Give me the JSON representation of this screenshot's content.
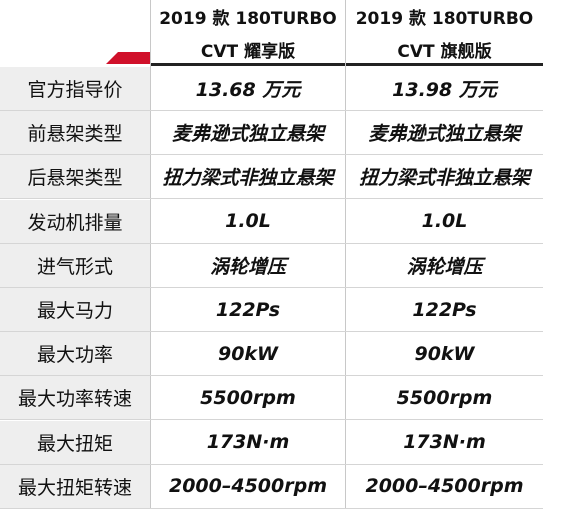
{
  "table": {
    "columns": [
      [
        "2019 款 180TURBO",
        "CVT 耀享版"
      ],
      [
        "2019 款 180TURBO",
        "CVT 旗舰版"
      ]
    ],
    "rows": [
      [
        "官方指导价",
        "13.68 万元",
        "13.98 万元"
      ],
      [
        "前悬架类型",
        "麦弗逊式独立悬架",
        "麦弗逊式独立悬架"
      ],
      [
        "后悬架类型",
        "扭力梁式非独立悬架",
        "扭力梁式非独立悬架"
      ],
      [
        "发动机排量",
        "1.0L",
        "1.0L"
      ],
      [
        "进气形式",
        "涡轮增压",
        "涡轮增压"
      ],
      [
        "最大马力",
        "122Ps",
        "122Ps"
      ],
      [
        "最大功率",
        "90kW",
        "90kW"
      ],
      [
        "最大功率转速",
        "5500rpm",
        "5500rpm"
      ],
      [
        "最大扭矩",
        "173N·m",
        "173N·m"
      ],
      [
        "最大扭矩转速",
        "2000–4500rpm",
        "2000–4500rpm"
      ]
    ]
  }
}
